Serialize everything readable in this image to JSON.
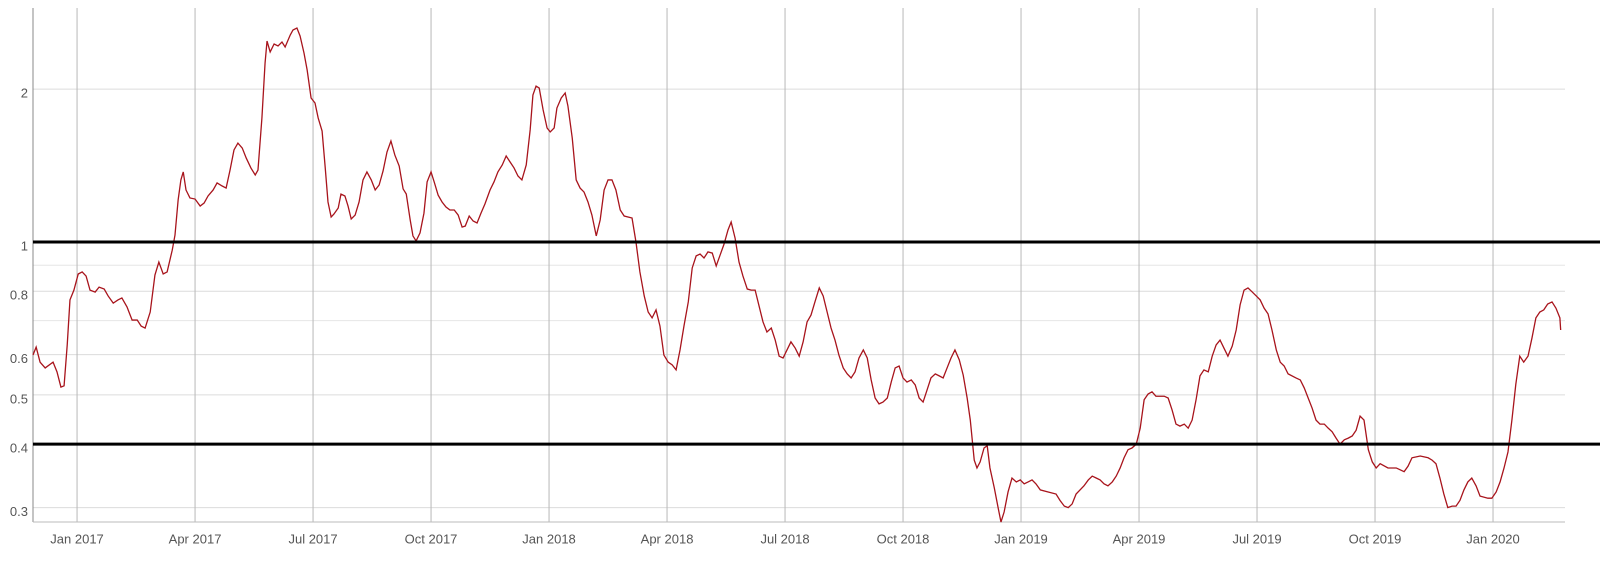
{
  "chart_data": {
    "type": "line",
    "color": "#a8141c",
    "log_y": true,
    "grid": true,
    "reference_lines": [
      1,
      0.4
    ],
    "reference_color": "#000000",
    "xlim": [
      -1.12,
      37.83
    ],
    "ylim": [
      0.281,
      2.889
    ],
    "xticks": [
      {
        "value": 0,
        "label": "Jan 2017"
      },
      {
        "value": 3,
        "label": "Apr 2017"
      },
      {
        "value": 6,
        "label": "Jul 2017"
      },
      {
        "value": 9,
        "label": "Oct 2017"
      },
      {
        "value": 12,
        "label": "Jan 2018"
      },
      {
        "value": 15,
        "label": "Apr 2018"
      },
      {
        "value": 18,
        "label": "Jul 2018"
      },
      {
        "value": 21,
        "label": "Oct 2018"
      },
      {
        "value": 24,
        "label": "Jan 2019"
      },
      {
        "value": 27,
        "label": "Apr 2019"
      },
      {
        "value": 30,
        "label": "Jul 2019"
      },
      {
        "value": 33,
        "label": "Oct 2019"
      },
      {
        "value": 36,
        "label": "Jan 2020"
      }
    ],
    "yticks": [
      0.3,
      0.4,
      0.5,
      0.6,
      0.8,
      1,
      2
    ],
    "yminor": [
      0.7,
      0.9
    ],
    "x": [
      -1.12,
      -1.04,
      -0.94,
      -0.81,
      -0.61,
      -0.51,
      -0.41,
      -0.33,
      -0.25,
      -0.18,
      -0.08,
      0.03,
      0.13,
      0.23,
      0.33,
      0.46,
      0.56,
      0.69,
      0.79,
      0.92,
      1.04,
      1.14,
      1.27,
      1.4,
      1.53,
      1.63,
      1.73,
      1.86,
      1.98,
      2.08,
      2.19,
      2.29,
      2.42,
      2.49,
      2.57,
      2.64,
      2.7,
      2.77,
      2.87,
      3.0,
      3.13,
      3.23,
      3.33,
      3.46,
      3.56,
      3.69,
      3.79,
      3.89,
      3.99,
      4.09,
      4.2,
      4.3,
      4.42,
      4.53,
      4.6,
      4.7,
      4.78,
      4.83,
      4.91,
      5.01,
      5.11,
      5.21,
      5.29,
      5.42,
      5.49,
      5.59,
      5.67,
      5.77,
      5.85,
      5.95,
      6.05,
      6.13,
      6.23,
      6.31,
      6.38,
      6.46,
      6.53,
      6.64,
      6.71,
      6.81,
      6.89,
      6.97,
      7.07,
      7.17,
      7.27,
      7.37,
      7.48,
      7.58,
      7.68,
      7.78,
      7.88,
      7.98,
      8.08,
      8.19,
      8.29,
      8.37,
      8.47,
      8.54,
      8.62,
      8.72,
      8.82,
      8.9,
      9.0,
      9.08,
      9.18,
      9.28,
      9.38,
      9.48,
      9.59,
      9.69,
      9.79,
      9.87,
      9.97,
      10.07,
      10.17,
      10.27,
      10.37,
      10.5,
      10.6,
      10.7,
      10.81,
      10.91,
      11.01,
      11.11,
      11.21,
      11.31,
      11.42,
      11.52,
      11.59,
      11.67,
      11.75,
      11.85,
      11.95,
      12.03,
      12.13,
      12.2,
      12.31,
      12.41,
      12.48,
      12.59,
      12.69,
      12.79,
      12.89,
      12.99,
      13.09,
      13.2,
      13.3,
      13.4,
      13.5,
      13.6,
      13.7,
      13.81,
      13.91,
      14.11,
      14.21,
      14.31,
      14.42,
      14.52,
      14.62,
      14.72,
      14.82,
      14.92,
      15.03,
      15.13,
      15.23,
      15.33,
      15.43,
      15.54,
      15.64,
      15.74,
      15.84,
      15.94,
      16.04,
      16.15,
      16.25,
      16.35,
      16.45,
      16.55,
      16.63,
      16.73,
      16.83,
      16.93,
      17.04,
      17.14,
      17.24,
      17.34,
      17.44,
      17.54,
      17.65,
      17.75,
      17.85,
      17.95,
      18.05,
      18.15,
      18.26,
      18.36,
      18.46,
      18.56,
      18.66,
      18.76,
      18.87,
      18.97,
      19.07,
      19.17,
      19.27,
      19.37,
      19.48,
      19.58,
      19.68,
      19.78,
      19.88,
      19.99,
      20.09,
      20.19,
      20.29,
      20.39,
      20.49,
      20.6,
      20.7,
      20.8,
      20.9,
      21.0,
      21.1,
      21.21,
      21.31,
      21.41,
      21.51,
      21.61,
      21.71,
      21.82,
      21.92,
      22.02,
      22.12,
      22.22,
      22.32,
      22.43,
      22.53,
      22.63,
      22.71,
      22.81,
      22.88,
      22.96,
      23.06,
      23.14,
      23.21,
      23.32,
      23.42,
      23.49,
      23.57,
      23.67,
      23.77,
      23.88,
      23.98,
      24.08,
      24.18,
      24.28,
      24.38,
      24.49,
      24.69,
      24.89,
      24.99,
      25.1,
      25.2,
      25.3,
      25.4,
      25.5,
      25.6,
      25.71,
      25.81,
      25.91,
      26.01,
      26.11,
      26.21,
      26.32,
      26.42,
      26.52,
      26.62,
      26.72,
      26.82,
      26.93,
      27.03,
      27.13,
      27.23,
      27.33,
      27.43,
      27.54,
      27.64,
      27.74,
      27.84,
      27.94,
      28.04,
      28.15,
      28.25,
      28.35,
      28.45,
      28.55,
      28.65,
      28.76,
      28.86,
      28.96,
      29.06,
      29.16,
      29.26,
      29.37,
      29.47,
      29.57,
      29.67,
      29.77,
      29.88,
      29.98,
      30.08,
      30.18,
      30.28,
      30.38,
      30.49,
      30.59,
      30.69,
      30.79,
      30.99,
      31.1,
      31.2,
      31.3,
      31.4,
      31.5,
      31.6,
      31.71,
      31.81,
      31.91,
      32.01,
      32.11,
      32.22,
      32.32,
      32.42,
      32.52,
      32.62,
      32.72,
      32.83,
      32.93,
      33.03,
      33.13,
      33.33,
      33.54,
      33.74,
      33.84,
      33.94,
      34.15,
      34.35,
      34.45,
      34.55,
      34.65,
      34.75,
      34.85,
      34.96,
      35.06,
      35.16,
      35.26,
      35.36,
      35.46,
      35.57,
      35.67,
      35.87,
      35.97,
      36.08,
      36.18,
      36.28,
      36.38,
      36.48,
      36.58,
      36.68,
      36.78,
      36.89,
      36.99,
      37.09,
      37.19,
      37.29,
      37.39,
      37.5,
      37.6,
      37.7,
      37.72
    ],
    "values": [
      0.599,
      0.621,
      0.58,
      0.565,
      0.58,
      0.555,
      0.518,
      0.521,
      0.627,
      0.769,
      0.804,
      0.865,
      0.873,
      0.857,
      0.804,
      0.797,
      0.815,
      0.808,
      0.783,
      0.758,
      0.769,
      0.776,
      0.745,
      0.702,
      0.702,
      0.683,
      0.677,
      0.728,
      0.861,
      0.913,
      0.865,
      0.873,
      0.964,
      1.032,
      1.21,
      1.325,
      1.374,
      1.266,
      1.221,
      1.215,
      1.177,
      1.193,
      1.232,
      1.266,
      1.307,
      1.289,
      1.277,
      1.386,
      1.518,
      1.566,
      1.531,
      1.464,
      1.399,
      1.355,
      1.386,
      1.755,
      2.251,
      2.487,
      2.367,
      2.454,
      2.432,
      2.476,
      2.421,
      2.556,
      2.615,
      2.638,
      2.545,
      2.356,
      2.181,
      1.921,
      1.878,
      1.755,
      1.654,
      1.399,
      1.199,
      1.12,
      1.135,
      1.167,
      1.243,
      1.232,
      1.177,
      1.11,
      1.13,
      1.199,
      1.325,
      1.374,
      1.325,
      1.266,
      1.295,
      1.38,
      1.504,
      1.581,
      1.483,
      1.411,
      1.272,
      1.243,
      1.105,
      1.028,
      1.005,
      1.042,
      1.14,
      1.313,
      1.374,
      1.313,
      1.237,
      1.199,
      1.172,
      1.156,
      1.156,
      1.13,
      1.07,
      1.075,
      1.125,
      1.1,
      1.09,
      1.14,
      1.188,
      1.266,
      1.313,
      1.374,
      1.418,
      1.477,
      1.437,
      1.399,
      1.349,
      1.325,
      1.418,
      1.662,
      1.947,
      2.028,
      2.01,
      1.819,
      1.677,
      1.647,
      1.677,
      1.836,
      1.921,
      1.965,
      1.853,
      1.602,
      1.325,
      1.277,
      1.254,
      1.199,
      1.13,
      1.028,
      1.105,
      1.266,
      1.325,
      1.325,
      1.266,
      1.156,
      1.125,
      1.115,
      1.0,
      0.873,
      0.783,
      0.728,
      0.709,
      0.735,
      0.683,
      0.599,
      0.58,
      0.573,
      0.56,
      0.613,
      0.683,
      0.762,
      0.889,
      0.939,
      0.947,
      0.93,
      0.956,
      0.951,
      0.897,
      0.943,
      0.991,
      1.056,
      1.095,
      1.018,
      0.913,
      0.857,
      0.808,
      0.804,
      0.804,
      0.748,
      0.696,
      0.665,
      0.677,
      0.641,
      0.596,
      0.591,
      0.613,
      0.636,
      0.618,
      0.596,
      0.636,
      0.696,
      0.718,
      0.762,
      0.812,
      0.783,
      0.728,
      0.677,
      0.641,
      0.599,
      0.565,
      0.55,
      0.54,
      0.555,
      0.591,
      0.613,
      0.591,
      0.535,
      0.493,
      0.48,
      0.484,
      0.493,
      0.53,
      0.565,
      0.57,
      0.54,
      0.53,
      0.535,
      0.523,
      0.493,
      0.484,
      0.511,
      0.54,
      0.55,
      0.545,
      0.54,
      0.565,
      0.591,
      0.613,
      0.586,
      0.547,
      0.493,
      0.446,
      0.372,
      0.359,
      0.369,
      0.393,
      0.397,
      0.359,
      0.328,
      0.299,
      0.281,
      0.294,
      0.322,
      0.343,
      0.337,
      0.34,
      0.334,
      0.337,
      0.34,
      0.334,
      0.325,
      0.322,
      0.319,
      0.31,
      0.302,
      0.3,
      0.305,
      0.319,
      0.325,
      0.331,
      0.34,
      0.346,
      0.343,
      0.34,
      0.334,
      0.331,
      0.337,
      0.346,
      0.359,
      0.376,
      0.39,
      0.393,
      0.4,
      0.43,
      0.489,
      0.502,
      0.507,
      0.497,
      0.497,
      0.497,
      0.493,
      0.467,
      0.438,
      0.434,
      0.438,
      0.43,
      0.446,
      0.489,
      0.545,
      0.56,
      0.555,
      0.596,
      0.627,
      0.641,
      0.618,
      0.596,
      0.624,
      0.671,
      0.752,
      0.804,
      0.812,
      0.797,
      0.783,
      0.769,
      0.741,
      0.722,
      0.671,
      0.613,
      0.58,
      0.57,
      0.55,
      0.54,
      0.535,
      0.516,
      0.493,
      0.471,
      0.446,
      0.438,
      0.438,
      0.43,
      0.423,
      0.411,
      0.4,
      0.408,
      0.411,
      0.415,
      0.426,
      0.454,
      0.446,
      0.39,
      0.369,
      0.359,
      0.366,
      0.359,
      0.359,
      0.353,
      0.362,
      0.376,
      0.379,
      0.376,
      0.372,
      0.366,
      0.343,
      0.319,
      0.3,
      0.302,
      0.302,
      0.31,
      0.325,
      0.337,
      0.343,
      0.331,
      0.316,
      0.313,
      0.313,
      0.322,
      0.337,
      0.359,
      0.386,
      0.446,
      0.525,
      0.596,
      0.58,
      0.596,
      0.647,
      0.709,
      0.728,
      0.735,
      0.755,
      0.762,
      0.741,
      0.709,
      0.671
    ]
  }
}
